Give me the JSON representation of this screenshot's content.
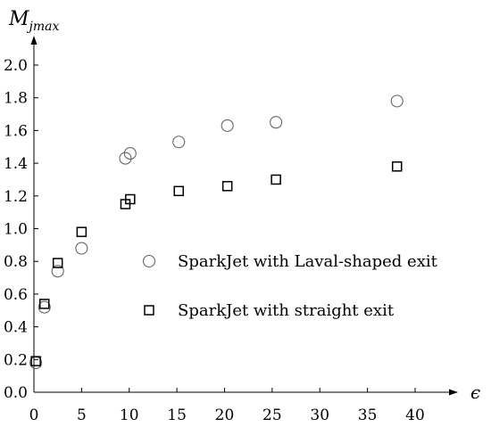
{
  "chart_data": {
    "type": "scatter",
    "xlabel": "ϵ",
    "ylabel": {
      "main": "M",
      "sub": "jmax"
    },
    "xlim": [
      0,
      40
    ],
    "ylim": [
      0,
      2.0
    ],
    "xticks": [
      "0",
      "5",
      "10",
      "15",
      "20",
      "25",
      "30",
      "35",
      "40"
    ],
    "yticks": [
      "0.0",
      "0.2",
      "0.4",
      "0.6",
      "0.8",
      "1.0",
      "1.2",
      "1.4",
      "1.6",
      "1.8",
      "2.0"
    ],
    "grid": false,
    "legend": "center-right",
    "series": [
      {
        "name": "SparkJet with Laval-shaped exit",
        "marker": "circle",
        "color": "#666666",
        "points": [
          {
            "x": 0.2,
            "y": 0.18
          },
          {
            "x": 1.1,
            "y": 0.52
          },
          {
            "x": 2.5,
            "y": 0.74
          },
          {
            "x": 5.0,
            "y": 0.88
          },
          {
            "x": 9.6,
            "y": 1.43
          },
          {
            "x": 10.1,
            "y": 1.46
          },
          {
            "x": 15.2,
            "y": 1.53
          },
          {
            "x": 20.3,
            "y": 1.63
          },
          {
            "x": 25.4,
            "y": 1.65
          },
          {
            "x": 38.1,
            "y": 1.78
          }
        ]
      },
      {
        "name": "SparkJet with straight exit",
        "marker": "square",
        "color": "#000000",
        "points": [
          {
            "x": 0.2,
            "y": 0.19
          },
          {
            "x": 1.1,
            "y": 0.54
          },
          {
            "x": 2.5,
            "y": 0.79
          },
          {
            "x": 5.0,
            "y": 0.98
          },
          {
            "x": 9.6,
            "y": 1.15
          },
          {
            "x": 10.1,
            "y": 1.18
          },
          {
            "x": 15.2,
            "y": 1.23
          },
          {
            "x": 20.3,
            "y": 1.26
          },
          {
            "x": 25.4,
            "y": 1.3
          },
          {
            "x": 38.1,
            "y": 1.38
          }
        ]
      }
    ]
  }
}
